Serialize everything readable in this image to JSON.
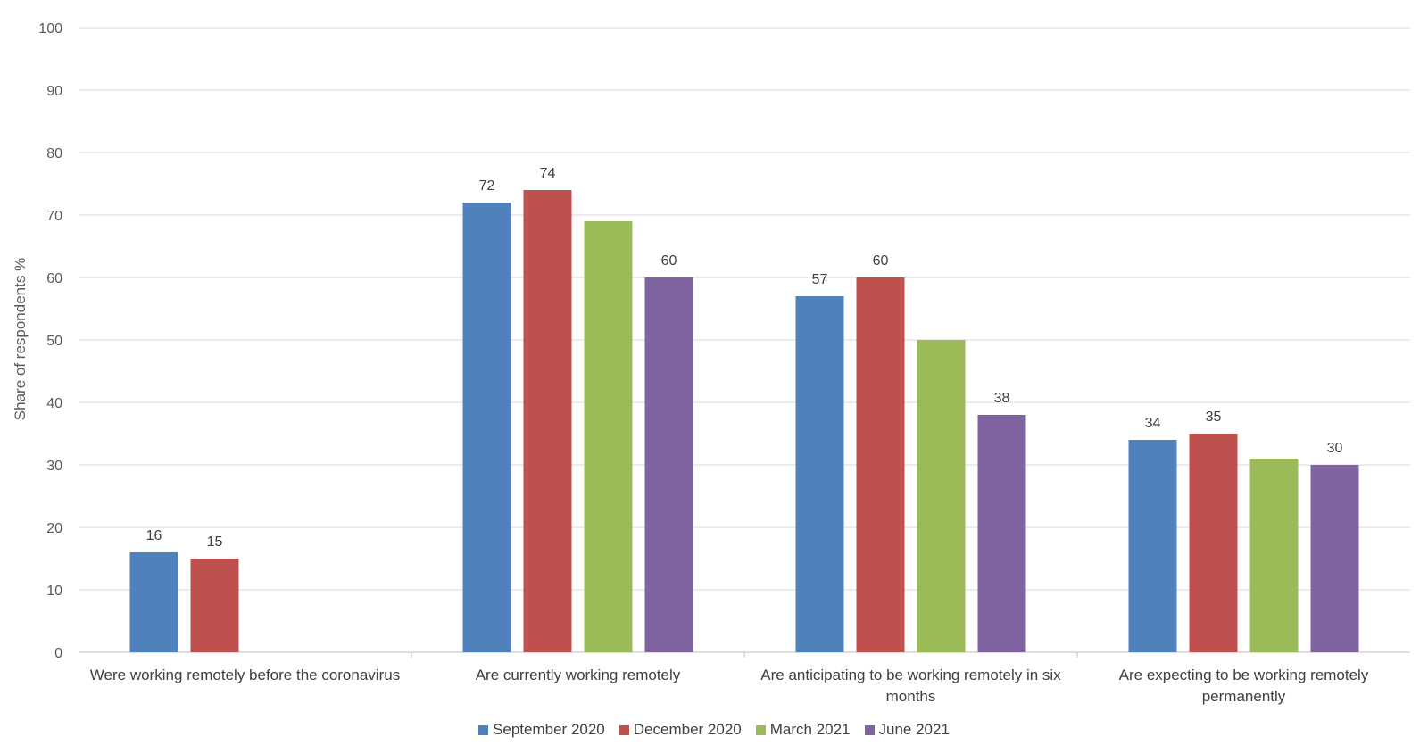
{
  "chart_data": {
    "type": "bar",
    "categories": [
      [
        "Were working remotely before the coronavirus"
      ],
      [
        "Are currently working remotely"
      ],
      [
        "Are anticipating to be working remotely in six",
        "months"
      ],
      [
        "Are expecting to be working remotely",
        "permanently"
      ]
    ],
    "series": [
      {
        "name": "September 2020",
        "color": "#4f81bd",
        "values": [
          16,
          72,
          57,
          34
        ],
        "labels": [
          "16",
          "72",
          "57",
          "34"
        ]
      },
      {
        "name": "December 2020",
        "color": "#c0504d",
        "values": [
          15,
          74,
          60,
          35
        ],
        "labels": [
          "15",
          "74",
          "60",
          "35"
        ]
      },
      {
        "name": "March 2021",
        "color": "#9bbb59",
        "values": [
          null,
          69,
          50,
          31
        ],
        "labels": [
          "",
          "",
          "",
          ""
        ]
      },
      {
        "name": "June 2021",
        "color": "#8064a2",
        "values": [
          null,
          60,
          38,
          30
        ],
        "labels": [
          "",
          "60",
          "38",
          "30"
        ]
      }
    ],
    "ylabel": "Share of respondents %",
    "xlabel": "",
    "ylim": [
      0,
      100
    ],
    "yticks": [
      0,
      10,
      20,
      30,
      40,
      50,
      60,
      70,
      80,
      90,
      100
    ],
    "grid": true,
    "legend_position": "bottom"
  }
}
